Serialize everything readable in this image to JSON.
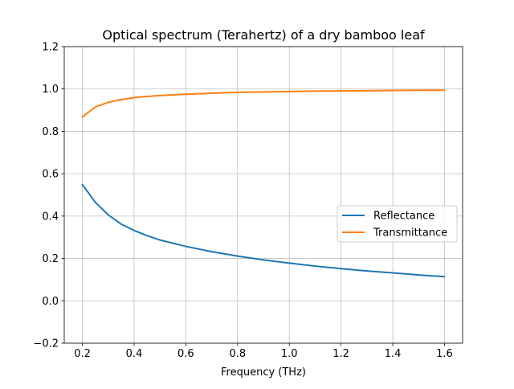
{
  "chart_data": {
    "type": "line",
    "title": "Optical spectrum (Terahertz) of a dry bamboo leaf",
    "xlabel": "Frequency (THz)",
    "ylabel": "",
    "xlim": [
      0.13,
      1.67
    ],
    "ylim": [
      -0.2,
      1.2
    ],
    "xticks": [
      0.2,
      0.4,
      0.6,
      0.8,
      1.0,
      1.2,
      1.4,
      1.6
    ],
    "xtick_labels": [
      "0.2",
      "0.4",
      "0.6",
      "0.8",
      "1.0",
      "1.2",
      "1.4",
      "1.6"
    ],
    "yticks": [
      -0.2,
      0.0,
      0.2,
      0.4,
      0.6,
      0.8,
      1.0,
      1.2
    ],
    "ytick_labels": [
      "−0.2",
      "0.0",
      "0.2",
      "0.4",
      "0.6",
      "0.8",
      "1.0",
      "1.2"
    ],
    "grid": true,
    "legend_position": "center-right",
    "x": [
      0.2,
      0.25,
      0.3,
      0.35,
      0.4,
      0.45,
      0.5,
      0.6,
      0.7,
      0.8,
      0.9,
      1.0,
      1.1,
      1.2,
      1.3,
      1.4,
      1.5,
      1.6
    ],
    "series": [
      {
        "name": "Reflectance",
        "color": "#1f77b4",
        "values": [
          0.549,
          0.465,
          0.406,
          0.362,
          0.332,
          0.308,
          0.287,
          0.257,
          0.232,
          0.211,
          0.193,
          0.178,
          0.164,
          0.152,
          0.141,
          0.132,
          0.122,
          0.114
        ]
      },
      {
        "name": "Transmittance",
        "color": "#ff7f0e",
        "values": [
          0.868,
          0.915,
          0.937,
          0.95,
          0.959,
          0.965,
          0.969,
          0.975,
          0.98,
          0.984,
          0.986,
          0.988,
          0.99,
          0.991,
          0.992,
          0.993,
          0.994,
          0.994
        ]
      }
    ]
  }
}
